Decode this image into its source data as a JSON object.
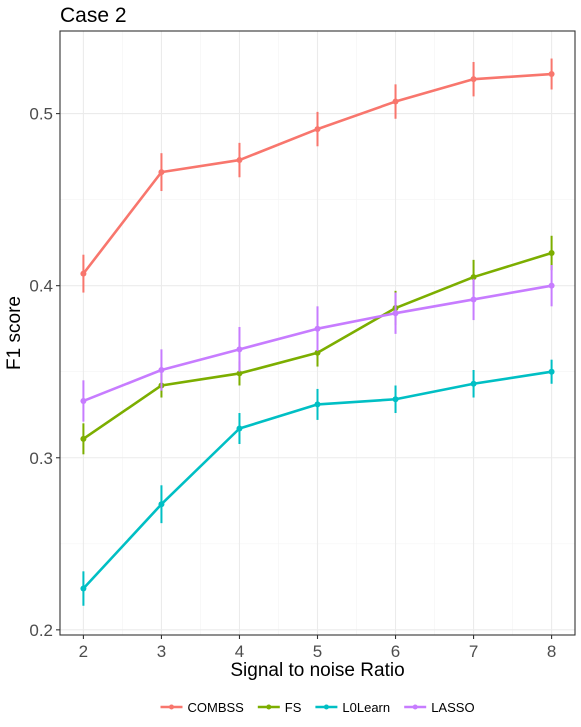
{
  "chart_data": {
    "type": "line",
    "title": "Case 2",
    "xlabel": "Signal to noise Ratio",
    "ylabel": "F1 score",
    "x": [
      2,
      3,
      4,
      5,
      6,
      7,
      8
    ],
    "xlim": [
      1.7,
      8.3
    ],
    "ylim": [
      0.197,
      0.548
    ],
    "xticks": [
      2,
      3,
      4,
      5,
      6,
      7,
      8
    ],
    "yticks": [
      0.2,
      0.3,
      0.4,
      0.5
    ],
    "ytick_labels": [
      "0.2",
      "0.3",
      "0.4",
      "0.5"
    ],
    "grid": true,
    "legend_position": "bottom",
    "series": [
      {
        "name": "COMBSS",
        "color": "#F8766D",
        "values": [
          0.407,
          0.466,
          0.473,
          0.491,
          0.507,
          0.52,
          0.523
        ],
        "error": [
          0.011,
          0.011,
          0.01,
          0.01,
          0.01,
          0.01,
          0.009
        ]
      },
      {
        "name": "FS",
        "color": "#7CAE00",
        "values": [
          0.311,
          0.342,
          0.349,
          0.361,
          0.387,
          0.405,
          0.419
        ],
        "error": [
          0.009,
          0.007,
          0.007,
          0.008,
          0.01,
          0.01,
          0.01
        ]
      },
      {
        "name": "L0Learn",
        "color": "#00BFC4",
        "values": [
          0.224,
          0.273,
          0.317,
          0.331,
          0.334,
          0.343,
          0.35
        ],
        "error": [
          0.01,
          0.011,
          0.009,
          0.009,
          0.008,
          0.008,
          0.007
        ]
      },
      {
        "name": "LASSO",
        "color": "#C77CFF",
        "values": [
          0.333,
          0.351,
          0.363,
          0.375,
          0.384,
          0.392,
          0.4
        ],
        "error": [
          0.012,
          0.012,
          0.013,
          0.013,
          0.012,
          0.012,
          0.012
        ]
      }
    ]
  }
}
